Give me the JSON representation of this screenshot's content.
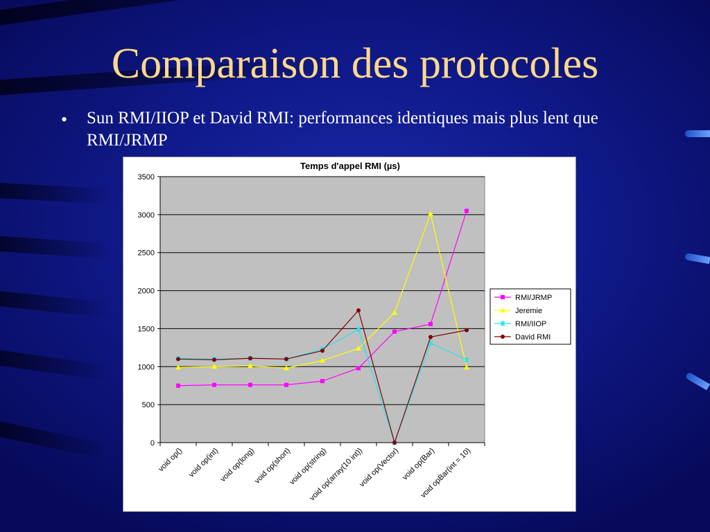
{
  "slide": {
    "title": "Comparaison des protocoles",
    "bullet": "•",
    "text": "Sun RMI/IIOP et David RMI: performances identiques mais plus lent que RMI/JRMP"
  },
  "colors": {
    "background": "#0b0f7a",
    "title": "#ffd98a",
    "plot_area": "#c0c0c0",
    "RMI/JRMP": "#ff00ff",
    "Jeremie": "#ffff00",
    "RMI/IIOP": "#22e5ee",
    "David RMI": "#800000"
  },
  "chart_data": {
    "type": "line",
    "title": "Temps d'appel RMI (µs)",
    "xlabel": "",
    "ylabel": "",
    "ylim": [
      0,
      3500
    ],
    "yticks": [
      0,
      500,
      1000,
      1500,
      2000,
      2500,
      3000,
      3500
    ],
    "grid": true,
    "legend": "right",
    "categories": [
      "void op()",
      "void op(int)",
      "void op(long)",
      "void op(short)",
      "void op(string)",
      "void op(array(10 int))",
      "void op(Vector)",
      "void op(Bar)",
      "void opBar(int = 10)"
    ],
    "series": [
      {
        "name": "RMI/JRMP",
        "marker": "square",
        "values": [
          750,
          760,
          760,
          760,
          810,
          980,
          1460,
          1560,
          3050
        ]
      },
      {
        "name": "Jeremie",
        "marker": "triangle",
        "values": [
          990,
          1000,
          1010,
          980,
          1080,
          1240,
          1710,
          3010,
          990
        ]
      },
      {
        "name": "RMI/IIOP",
        "marker": "x",
        "values": [
          1110,
          1100,
          1110,
          1100,
          1230,
          1490,
          0,
          1310,
          1090
        ]
      },
      {
        "name": "David RMI",
        "marker": "circle",
        "values": [
          1100,
          1090,
          1110,
          1100,
          1210,
          1740,
          0,
          1390,
          1480
        ]
      }
    ]
  }
}
